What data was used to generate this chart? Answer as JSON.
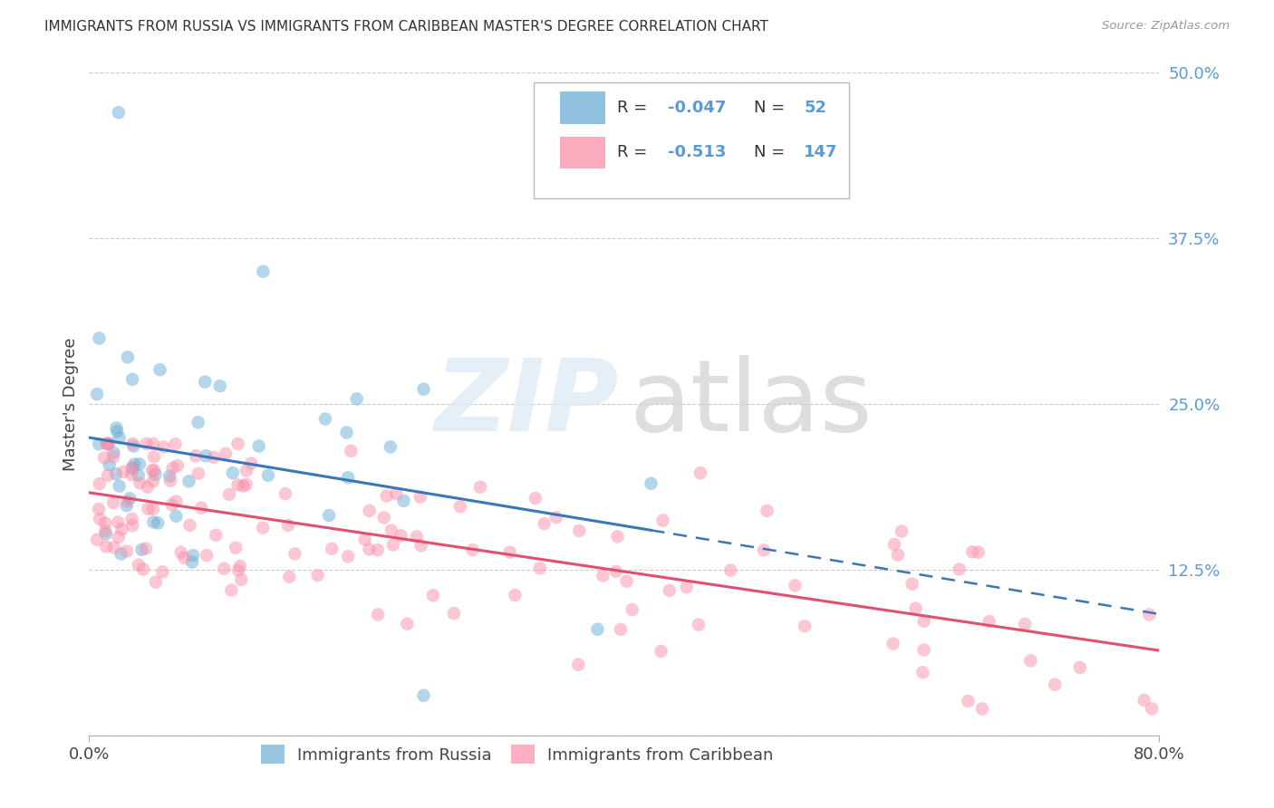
{
  "title": "IMMIGRANTS FROM RUSSIA VS IMMIGRANTS FROM CARIBBEAN MASTER'S DEGREE CORRELATION CHART",
  "source": "Source: ZipAtlas.com",
  "ylabel": "Master's Degree",
  "xlim": [
    0.0,
    0.8
  ],
  "ylim": [
    0.0,
    0.5
  ],
  "ytick_values": [
    0.0,
    0.125,
    0.25,
    0.375,
    0.5
  ],
  "ytick_labels": [
    "",
    "12.5%",
    "25.0%",
    "37.5%",
    "50.0%"
  ],
  "xtick_values": [
    0.0,
    0.8
  ],
  "xtick_labels": [
    "0.0%",
    "80.0%"
  ],
  "grid_color": "#cccccc",
  "background_color": "#ffffff",
  "color_russia": "#6baed6",
  "color_caribbean": "#fc8fa8",
  "color_russia_line": "#3a76b8",
  "color_caribbean_line": "#e05070",
  "ytick_color": "#5b9bd5",
  "title_color": "#333333",
  "source_color": "#999999",
  "label_color": "#444444"
}
